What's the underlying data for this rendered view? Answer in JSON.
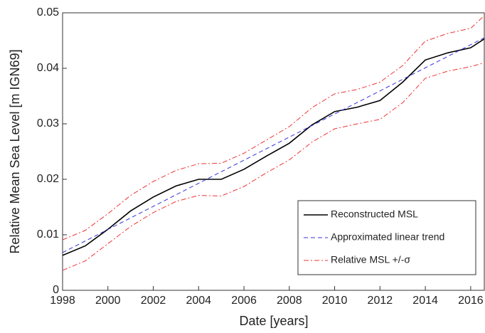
{
  "chart_data": {
    "type": "line",
    "xlabel": "Date [years]",
    "ylabel": "Relative Mean Sea Level [m IGN69]",
    "xlim": [
      1998,
      2016.6
    ],
    "xticks": [
      1998,
      2000,
      2002,
      2004,
      2006,
      2008,
      2010,
      2012,
      2014,
      2016
    ],
    "ylim": [
      0,
      0.05
    ],
    "yticks": [
      0,
      0.01,
      0.02,
      0.03,
      0.04,
      0.05
    ],
    "legend": "lower right",
    "series": [
      {
        "name": "Reconstructed MSL",
        "color": "#000000",
        "linestyle": "-",
        "x": [
          1998,
          1999,
          2000,
          2001,
          2002,
          2003,
          2004,
          2005,
          2006,
          2007,
          2008,
          2009,
          2010,
          2011,
          2012,
          2013,
          2014,
          2015,
          2016,
          2016.6
        ],
        "values": [
          0.0063,
          0.008,
          0.011,
          0.0143,
          0.0168,
          0.0188,
          0.02,
          0.02,
          0.0218,
          0.0242,
          0.0265,
          0.0298,
          0.0322,
          0.033,
          0.0342,
          0.0375,
          0.0415,
          0.0428,
          0.0437,
          0.0453
        ]
      },
      {
        "name": "Approximated linear trend",
        "color": "#3333dd",
        "linestyle": "--",
        "x": [
          1998,
          2016.6
        ],
        "values": [
          0.0068,
          0.0455
        ]
      },
      {
        "name": "Relative MSL +/-σ",
        "color": "#ee3333",
        "linestyle": "-.",
        "x": [
          1998,
          1999,
          2000,
          2001,
          2002,
          2003,
          2004,
          2005,
          2006,
          2007,
          2008,
          2009,
          2010,
          2011,
          2012,
          2013,
          2014,
          2015,
          2016,
          2016.6
        ],
        "values": [
          0.0091,
          0.0108,
          0.0138,
          0.0171,
          0.0196,
          0.0216,
          0.0228,
          0.0229,
          0.0247,
          0.0271,
          0.0295,
          0.0329,
          0.0354,
          0.0362,
          0.0375,
          0.0405,
          0.0449,
          0.0463,
          0.0472,
          0.0495
        ]
      },
      {
        "color": "#ee3333",
        "linestyle": "-.",
        "x": [
          1998,
          1999,
          2000,
          2001,
          2002,
          2003,
          2004,
          2005,
          2006,
          2007,
          2008,
          2009,
          2010,
          2011,
          2012,
          2013,
          2014,
          2015,
          2016,
          2016.6
        ],
        "values": [
          0.0036,
          0.0053,
          0.0084,
          0.0115,
          0.014,
          0.016,
          0.0171,
          0.017,
          0.0187,
          0.0212,
          0.0235,
          0.0267,
          0.0291,
          0.03,
          0.0308,
          0.0338,
          0.0382,
          0.0395,
          0.0403,
          0.041
        ]
      }
    ]
  }
}
